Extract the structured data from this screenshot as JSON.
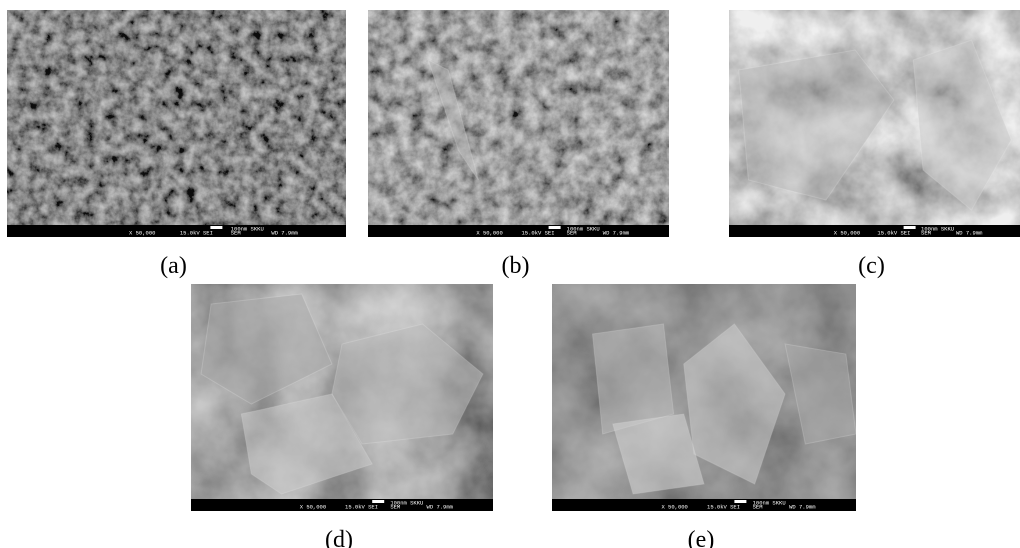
{
  "panels": [
    {
      "label": "(a)",
      "info": {
        "magnification": "X 50,000",
        "voltage": "15.0kV SEI",
        "mode": "SEM",
        "distance": "WD 7.9mm",
        "scale": "100nm SKKU"
      }
    },
    {
      "label": "(b)",
      "info": {
        "magnification": "X 50,000",
        "voltage": "15.0kV SEI",
        "mode": "SEM",
        "distance": "WD 7.9mm",
        "scale": "100nm SKKU"
      }
    },
    {
      "label": "(c)",
      "info": {
        "magnification": "X 50,000",
        "voltage": "15.0kV SEI",
        "mode": "SEM",
        "distance": "WD 7.9mm",
        "scale": "100nm SKKU"
      }
    },
    {
      "label": "(d)",
      "info": {
        "magnification": "X 50,000",
        "voltage": "15.0kV SEI",
        "mode": "SEM",
        "distance": "WD 7.9mm",
        "scale": "100nm SKKU"
      }
    },
    {
      "label": "(e)",
      "info": {
        "magnification": "X 50,000",
        "voltage": "15.0kV SEI",
        "mode": "SEM",
        "distance": "WD 7.9mm",
        "scale": "100nm SKKU"
      }
    }
  ]
}
